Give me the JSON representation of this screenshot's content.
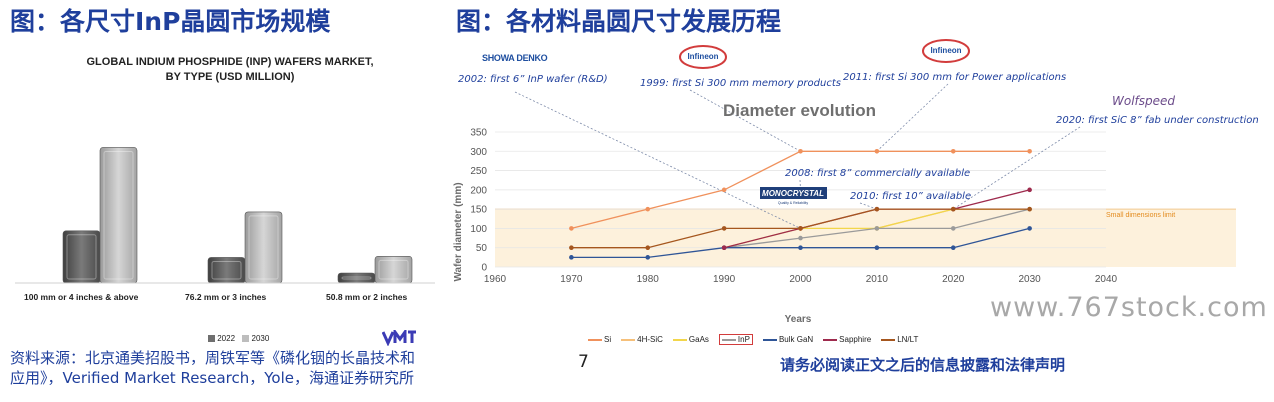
{
  "left": {
    "heading": "图：各尺寸InP晶圆市场规模",
    "chart_title_line1": "GLOBAL INDIUM PHOSPHIDE (INP) WAFERS MARKET,",
    "chart_title_line2": "BY TYPE (USD MILLION)",
    "legend_2022": "2022",
    "legend_2030": "2030",
    "logo_text": "VERIFIED MARKET RESEARCH"
  },
  "right": {
    "heading": "图：各材料晶圆尺寸发展历程",
    "chart_title": "Diameter evolution",
    "logos": {
      "showa": "SHOWA DENKO",
      "infineon1": "Infineon",
      "infineon2": "Infineon",
      "wolfspeed": "Wolfspeed",
      "monocrystal": "MONOCRYSTAL",
      "monocrystal_sub": "Quality & Reliability"
    },
    "annotations": {
      "a1": "2002: first 6” InP wafer (R&D)",
      "a2": "1999: first Si 300 mm memory products",
      "a3": "2011: first Si 300 mm for Power applications",
      "a4": "2020: first SiC 8” fab under construction",
      "a5": "2008: first 8” commercially available",
      "a6": "2010: first 10” available"
    },
    "limit_label": "Small dimensions limit"
  },
  "footer": {
    "source_line1": "资料来源：北京通美招股书，周铁军等《磷化铟的长晶技术和",
    "source_line2": "应用》，Verified Market Research，Yole，海通证券研究所",
    "page_number": "7",
    "disclaimer": "请务必阅读正文之后的信息披露和法律声明",
    "watermark": "www.767stock.com"
  },
  "chart_data": [
    {
      "type": "bar",
      "title": "GLOBAL INDIUM PHOSPHIDE (INP) WAFERS MARKET, BY TYPE (USD MILLION)",
      "categories": [
        "100 mm or 4 inches & above",
        "76.2 mm or 3 inches",
        "50.8 mm or 2 inches"
      ],
      "series": [
        {
          "name": "2022",
          "values": [
            47,
            23,
            9
          ],
          "color": "#6f6f6f"
        },
        {
          "name": "2030",
          "values": [
            122,
            64,
            24
          ],
          "color": "#bdbdbd"
        }
      ],
      "ylim": [
        0,
        135
      ],
      "grid": false,
      "legend": "bottom"
    },
    {
      "type": "line",
      "title": "Diameter evolution",
      "xlabel": "Years",
      "ylabel": "Wafer diameter (mm)",
      "xlim": [
        1960,
        2040
      ],
      "ylim": [
        0,
        350
      ],
      "xticks": [
        1960,
        1970,
        1980,
        1990,
        2000,
        2010,
        2020,
        2030,
        2040
      ],
      "yticks": [
        0,
        50,
        100,
        150,
        200,
        250,
        300,
        350
      ],
      "x": [
        1970,
        1980,
        1990,
        2000,
        2010,
        2020,
        2030
      ],
      "band": {
        "y0": 0,
        "y1": 150,
        "color": "#fdf1dc"
      },
      "series": [
        {
          "name": "Si",
          "color": "#f0915c",
          "values": [
            100,
            150,
            200,
            300,
            300,
            300,
            300
          ]
        },
        {
          "name": "4H-SiC",
          "color": "#f6c07a",
          "values": [
            null,
            null,
            null,
            null,
            100,
            150,
            150
          ]
        },
        {
          "name": "GaAs",
          "color": "#f2d64b",
          "values": [
            null,
            null,
            50,
            100,
            100,
            150,
            150
          ]
        },
        {
          "name": "InP",
          "color": "#9a9a9a",
          "values": [
            null,
            null,
            50,
            75,
            100,
            100,
            150
          ]
        },
        {
          "name": "Bulk GaN",
          "color": "#2f5597",
          "values": [
            25,
            25,
            50,
            50,
            50,
            50,
            100
          ]
        },
        {
          "name": "Sapphire",
          "color": "#9e2a4d",
          "values": [
            null,
            null,
            50,
            100,
            150,
            150,
            200
          ]
        },
        {
          "name": "LN/LT",
          "color": "#a5561e",
          "values": [
            50,
            50,
            100,
            100,
            150,
            150,
            150
          ]
        }
      ],
      "legend": "bottom"
    }
  ]
}
